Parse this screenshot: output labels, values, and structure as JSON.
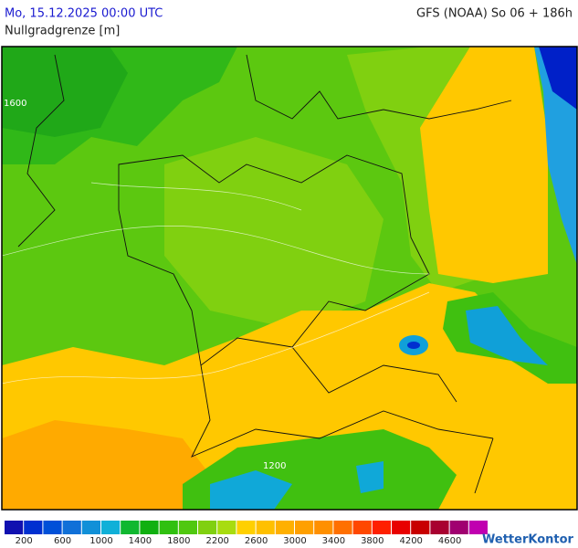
{
  "header": {
    "valid_time": "Mo, 15.12.2025 00:00 UTC",
    "model_run": "GFS (NOAA) So 06 + 186h",
    "parameter": "Nullgradgrenze [m]"
  },
  "map": {
    "contour_labels": [
      "1600",
      "1200"
    ]
  },
  "legend": {
    "colors": [
      "#1010b0",
      "#0030d0",
      "#0050d8",
      "#1070d8",
      "#1090d8",
      "#10b0d8",
      "#10b830",
      "#10b010",
      "#30c010",
      "#50c810",
      "#80d010",
      "#a8dc10",
      "#ffd000",
      "#ffc000",
      "#ffb000",
      "#ffa000",
      "#ff9000",
      "#ff7000",
      "#ff4800",
      "#ff2000",
      "#e80000",
      "#c80000",
      "#a80030",
      "#a00070",
      "#c000b0"
    ],
    "ticks": [
      200,
      600,
      1000,
      1400,
      1800,
      2200,
      2600,
      3000,
      3400,
      3800,
      4200,
      4600
    ]
  },
  "brand": "WetterKontor"
}
